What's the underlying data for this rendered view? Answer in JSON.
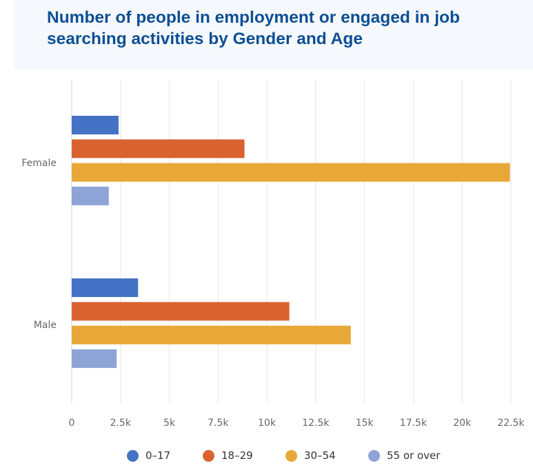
{
  "header": {
    "title_line1": "Number of people in employment or engaged in job",
    "title_line2": "searching activities by Gender and Age"
  },
  "chart_data": {
    "type": "bar",
    "orientation": "horizontal",
    "categories": [
      "Female",
      "Male"
    ],
    "series": [
      {
        "name": "0-17",
        "label": "0–17",
        "color": "#4472c4",
        "values": [
          2400,
          3400
        ]
      },
      {
        "name": "18-29",
        "label": "18–29",
        "color": "#d96330",
        "values": [
          8850,
          11150
        ]
      },
      {
        "name": "30-54",
        "label": "30–54",
        "color": "#e8a838",
        "values": [
          22450,
          14300
        ]
      },
      {
        "name": "55 or over",
        "label": "55 or over",
        "color": "#8ea4d7",
        "values": [
          1900,
          2300
        ]
      }
    ],
    "xlim": [
      0,
      22500
    ],
    "x_ticks": [
      0,
      2500,
      5000,
      7500,
      10000,
      12500,
      15000,
      17500,
      20000,
      22500
    ],
    "x_tick_labels": [
      "0",
      "2.5k",
      "5k",
      "7.5k",
      "10k",
      "12.5k",
      "15k",
      "17.5k",
      "20k",
      "22.5k"
    ],
    "grid": true,
    "legend_position": "bottom-center"
  }
}
